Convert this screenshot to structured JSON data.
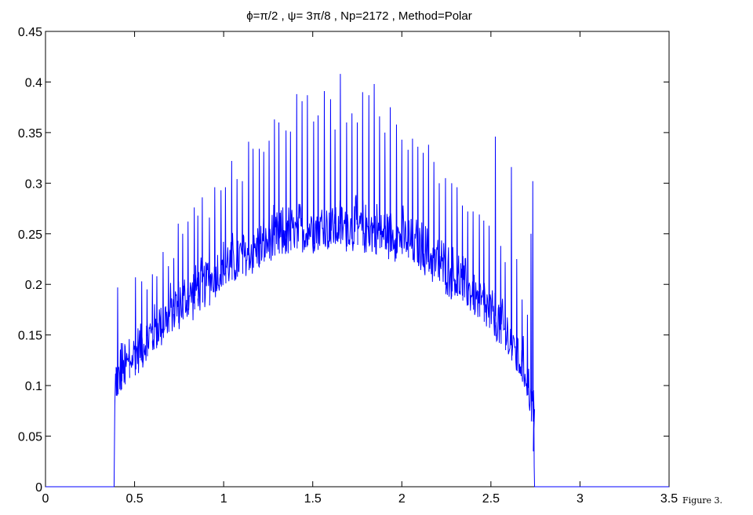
{
  "chart_data": {
    "type": "line",
    "title": "ϕ=π/2 ,  ψ= 3π/8 , Np=2172 , Method=Polar",
    "xlabel": "",
    "ylabel": "",
    "xlim": [
      0,
      3.5
    ],
    "ylim": [
      0,
      0.45
    ],
    "xticks": [
      0,
      0.5,
      1,
      1.5,
      2,
      2.5,
      3,
      3.5
    ],
    "xtick_labels": [
      "0",
      "0.5",
      "1",
      "1.5",
      "2",
      "2.5",
      "3",
      "3.5"
    ],
    "yticks": [
      0,
      0.05,
      0.1,
      0.15,
      0.2,
      0.25,
      0.3,
      0.35,
      0.4,
      0.45
    ],
    "ytick_labels": [
      "0",
      "0.05",
      "0.1",
      "0.15",
      "0.2",
      "0.25",
      "0.3",
      "0.35",
      "0.4",
      "0.45"
    ],
    "grid": false,
    "legend": "none",
    "line_color": "#0000ff",
    "caption": "Figure 3.",
    "series": [
      {
        "color": "#0000ff",
        "support": [
          0.385,
          2.745
        ],
        "baseline_envelope": [
          [
            0.4,
            0.1
          ],
          [
            0.5,
            0.125
          ],
          [
            0.6,
            0.145
          ],
          [
            0.7,
            0.165
          ],
          [
            0.8,
            0.18
          ],
          [
            0.9,
            0.195
          ],
          [
            1.0,
            0.21
          ],
          [
            1.1,
            0.22
          ],
          [
            1.2,
            0.23
          ],
          [
            1.3,
            0.24
          ],
          [
            1.4,
            0.245
          ],
          [
            1.5,
            0.25
          ],
          [
            1.6,
            0.25
          ],
          [
            1.7,
            0.25
          ],
          [
            1.8,
            0.248
          ],
          [
            1.9,
            0.245
          ],
          [
            2.0,
            0.24
          ],
          [
            2.1,
            0.23
          ],
          [
            2.2,
            0.215
          ],
          [
            2.3,
            0.2
          ],
          [
            2.4,
            0.185
          ],
          [
            2.5,
            0.165
          ],
          [
            2.6,
            0.14
          ],
          [
            2.7,
            0.105
          ],
          [
            2.74,
            0.07
          ]
        ],
        "peaks": [
          [
            0.395,
            0.112
          ],
          [
            0.405,
            0.197
          ],
          [
            0.425,
            0.142
          ],
          [
            0.445,
            0.141
          ],
          [
            0.47,
            0.146
          ],
          [
            0.505,
            0.207
          ],
          [
            0.54,
            0.203
          ],
          [
            0.57,
            0.195
          ],
          [
            0.6,
            0.21
          ],
          [
            0.625,
            0.208
          ],
          [
            0.66,
            0.232
          ],
          [
            0.69,
            0.218
          ],
          [
            0.72,
            0.226
          ],
          [
            0.745,
            0.26
          ],
          [
            0.77,
            0.25
          ],
          [
            0.8,
            0.262
          ],
          [
            0.835,
            0.276
          ],
          [
            0.855,
            0.268
          ],
          [
            0.88,
            0.286
          ],
          [
            0.92,
            0.266
          ],
          [
            0.95,
            0.296
          ],
          [
            0.985,
            0.293
          ],
          [
            1.01,
            0.296
          ],
          [
            1.045,
            0.322
          ],
          [
            1.075,
            0.304
          ],
          [
            1.105,
            0.302
          ],
          [
            1.14,
            0.341
          ],
          [
            1.165,
            0.334
          ],
          [
            1.2,
            0.334
          ],
          [
            1.225,
            0.331
          ],
          [
            1.255,
            0.342
          ],
          [
            1.285,
            0.363
          ],
          [
            1.31,
            0.36
          ],
          [
            1.35,
            0.352
          ],
          [
            1.375,
            0.351
          ],
          [
            1.41,
            0.388
          ],
          [
            1.44,
            0.381
          ],
          [
            1.47,
            0.387
          ],
          [
            1.505,
            0.361
          ],
          [
            1.53,
            0.367
          ],
          [
            1.565,
            0.391
          ],
          [
            1.6,
            0.383
          ],
          [
            1.625,
            0.353
          ],
          [
            1.655,
            0.408
          ],
          [
            1.69,
            0.36
          ],
          [
            1.72,
            0.369
          ],
          [
            1.75,
            0.36
          ],
          [
            1.78,
            0.39
          ],
          [
            1.815,
            0.387
          ],
          [
            1.845,
            0.398
          ],
          [
            1.875,
            0.366
          ],
          [
            1.905,
            0.35
          ],
          [
            1.935,
            0.375
          ],
          [
            1.97,
            0.358
          ],
          [
            2.0,
            0.343
          ],
          [
            2.035,
            0.333
          ],
          [
            2.06,
            0.344
          ],
          [
            2.09,
            0.336
          ],
          [
            2.12,
            0.33
          ],
          [
            2.15,
            0.338
          ],
          [
            2.18,
            0.321
          ],
          [
            2.21,
            0.3
          ],
          [
            2.245,
            0.305
          ],
          [
            2.28,
            0.3
          ],
          [
            2.31,
            0.296
          ],
          [
            2.34,
            0.278
          ],
          [
            2.37,
            0.272
          ],
          [
            2.4,
            0.272
          ],
          [
            2.435,
            0.269
          ],
          [
            2.46,
            0.263
          ],
          [
            2.49,
            0.258
          ],
          [
            2.525,
            0.346
          ],
          [
            2.555,
            0.238
          ],
          [
            2.58,
            0.222
          ],
          [
            2.615,
            0.316
          ],
          [
            2.645,
            0.225
          ],
          [
            2.675,
            0.185
          ],
          [
            2.705,
            0.17
          ],
          [
            2.725,
            0.25
          ],
          [
            2.735,
            0.302
          ]
        ],
        "zero_ranges": [
          [
            0,
            0.385
          ],
          [
            2.745,
            3.5
          ]
        ]
      }
    ]
  }
}
